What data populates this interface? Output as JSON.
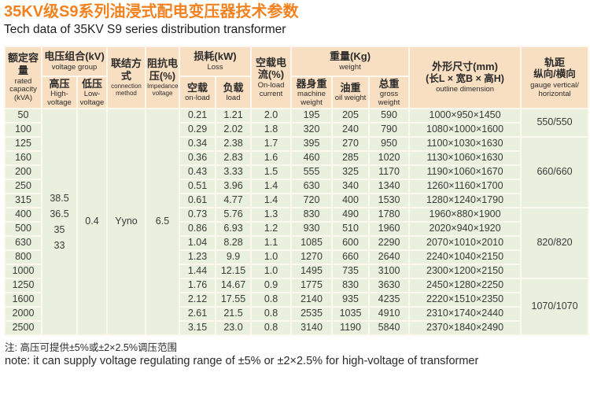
{
  "page": {
    "title_zh": "35KV级S9系列油浸式配电变压器技术参数",
    "title_en": "Tech data of 35KV S9 series distribution transformer",
    "note_zh": "注: 高压可提供±5%或±2×2.5%调压范围",
    "note_en": "note: it can supply voltage regulating range of ±5% or ±2×2.5% for high-voltage of transformer"
  },
  "colors": {
    "title_accent": "#f28220",
    "header_bg": "#f8dfc2",
    "body_bg": "#e9f0dd",
    "grid_line": "#fdf8ef"
  },
  "table": {
    "headers": {
      "capacity": {
        "zh": "额定容量",
        "en": "rated capacity (kVA)"
      },
      "voltage_group": {
        "zh": "电压组合(kV)",
        "en": "voltage group"
      },
      "high_voltage": {
        "zh": "高压",
        "en": "High-voltage"
      },
      "low_voltage": {
        "zh": "低压",
        "en": "Low-voltage"
      },
      "connection": {
        "zh": "联结方式",
        "en": "connection method"
      },
      "impedance": {
        "zh": "阻抗电压(%)",
        "en": "Impedance voltage"
      },
      "loss": {
        "zh": "损耗(kW)",
        "en": "Loss"
      },
      "no_load": {
        "zh": "空载",
        "en": "on-load"
      },
      "load": {
        "zh": "负载",
        "en": "load"
      },
      "current": {
        "zh": "空载电流(%)",
        "en": "On-load current"
      },
      "weight": {
        "zh": "重量(Kg)",
        "en": "weight"
      },
      "machine_weight": {
        "zh": "器身重",
        "en": "machine weight"
      },
      "oil_weight": {
        "zh": "油重",
        "en": "oil weight"
      },
      "gross_weight": {
        "zh": "总重",
        "en": "gross weight"
      },
      "outline": {
        "zh": "外形尺寸(mm)",
        "zh2": "(长L × 宽B × 高H)",
        "en": "outline dimension"
      },
      "gauge": {
        "zh": "轨距",
        "zh2": "纵向/横向",
        "en": "gauge vertical/ horizontal"
      }
    },
    "merged": {
      "high_voltage_values": [
        "38.5",
        "36.5",
        "35",
        "33"
      ],
      "low_voltage": "0.4",
      "connection": "Yyno",
      "impedance": "6.5"
    },
    "rows": [
      {
        "kva": "50",
        "no_load": "0.21",
        "load": "1.21",
        "current": "2.0",
        "machine": "195",
        "oil": "205",
        "gross": "590",
        "dim": "1000×950×1450"
      },
      {
        "kva": "100",
        "no_load": "0.29",
        "load": "2.02",
        "current": "1.8",
        "machine": "320",
        "oil": "240",
        "gross": "790",
        "dim": "1080×1000×1600"
      },
      {
        "kva": "125",
        "no_load": "0.34",
        "load": "2.38",
        "current": "1.7",
        "machine": "395",
        "oil": "270",
        "gross": "950",
        "dim": "1100×1030×1630"
      },
      {
        "kva": "160",
        "no_load": "0.36",
        "load": "2.83",
        "current": "1.6",
        "machine": "460",
        "oil": "285",
        "gross": "1020",
        "dim": "1130×1060×1630"
      },
      {
        "kva": "200",
        "no_load": "0.43",
        "load": "3.33",
        "current": "1.5",
        "machine": "555",
        "oil": "325",
        "gross": "1170",
        "dim": "1190×1060×1670"
      },
      {
        "kva": "250",
        "no_load": "0.51",
        "load": "3.96",
        "current": "1.4",
        "machine": "630",
        "oil": "340",
        "gross": "1340",
        "dim": "1260×1160×1700"
      },
      {
        "kva": "315",
        "no_load": "0.61",
        "load": "4.77",
        "current": "1.4",
        "machine": "720",
        "oil": "400",
        "gross": "1530",
        "dim": "1280×1240×1790"
      },
      {
        "kva": "400",
        "no_load": "0.73",
        "load": "5.76",
        "current": "1.3",
        "machine": "830",
        "oil": "490",
        "gross": "1780",
        "dim": "1960×880×1900"
      },
      {
        "kva": "500",
        "no_load": "0.86",
        "load": "6.93",
        "current": "1.2",
        "machine": "930",
        "oil": "510",
        "gross": "1960",
        "dim": "2020×940×1920"
      },
      {
        "kva": "630",
        "no_load": "1.04",
        "load": "8.28",
        "current": "1.1",
        "machine": "1085",
        "oil": "600",
        "gross": "2290",
        "dim": "2070×1010×2010"
      },
      {
        "kva": "800",
        "no_load": "1.23",
        "load": "9.9",
        "current": "1.0",
        "machine": "1270",
        "oil": "660",
        "gross": "2640",
        "dim": "2240×1040×2150"
      },
      {
        "kva": "1000",
        "no_load": "1.44",
        "load": "12.15",
        "current": "1.0",
        "machine": "1495",
        "oil": "735",
        "gross": "3100",
        "dim": "2300×1200×2150"
      },
      {
        "kva": "1250",
        "no_load": "1.76",
        "load": "14.67",
        "current": "0.9",
        "machine": "1775",
        "oil": "830",
        "gross": "3630",
        "dim": "2450×1280×2250"
      },
      {
        "kva": "1600",
        "no_load": "2.12",
        "load": "17.55",
        "current": "0.8",
        "machine": "2140",
        "oil": "935",
        "gross": "4235",
        "dim": "2220×1510×2350"
      },
      {
        "kva": "2000",
        "no_load": "2.61",
        "load": "21.5",
        "current": "0.8",
        "machine": "2535",
        "oil": "1035",
        "gross": "4910",
        "dim": "2310×1740×2440"
      },
      {
        "kva": "2500",
        "no_load": "3.15",
        "load": "23.0",
        "current": "0.8",
        "machine": "3140",
        "oil": "1190",
        "gross": "5840",
        "dim": "2370×1840×2490"
      }
    ],
    "gauge_groups": [
      {
        "label": "550/550",
        "span": 2
      },
      {
        "label": "660/660",
        "span": 5
      },
      {
        "label": "820/820",
        "span": 5
      },
      {
        "label": "1070/1070",
        "span": 4
      }
    ]
  }
}
